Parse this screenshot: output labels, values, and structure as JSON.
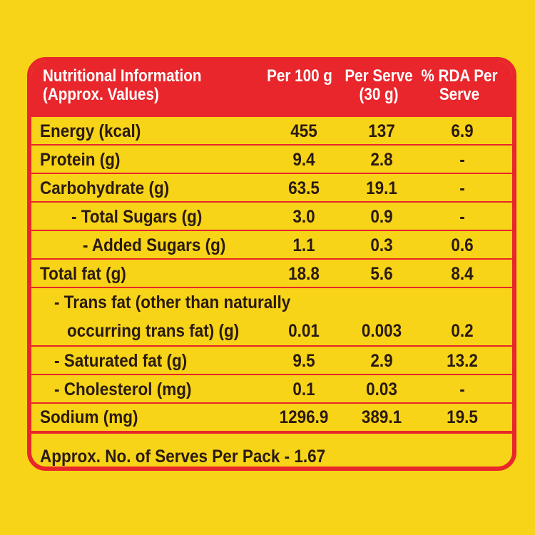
{
  "header": {
    "info_line1": "Nutritional Information",
    "info_line2": "(Approx. Values)",
    "col1": "Per 100 g",
    "col2_line1": "Per Serve",
    "col2_line2": "(30 g)",
    "col3_line1": "% RDA Per",
    "col3_line2": "Serve"
  },
  "rows": [
    {
      "label": "Energy (kcal)",
      "per100": "455",
      "perServe": "137",
      "rda": "6.9"
    },
    {
      "label": "Protein (g)",
      "per100": "9.4",
      "perServe": "2.8",
      "rda": "-"
    },
    {
      "label": "Carbohydrate (g)",
      "per100": "63.5",
      "perServe": "19.1",
      "rda": "-"
    },
    {
      "label": "- Total Sugars (g)",
      "per100": "3.0",
      "perServe": "0.9",
      "rda": "-"
    },
    {
      "label": "- Added Sugars (g)",
      "per100": "1.1",
      "perServe": "0.3",
      "rda": "0.6"
    },
    {
      "label": "Total fat (g)",
      "per100": "18.8",
      "perServe": "5.6",
      "rda": "8.4"
    },
    {
      "label_line1": "- Trans fat (other than naturally",
      "label_line2": "occurring trans fat) (g)",
      "per100": "0.01",
      "perServe": "0.003",
      "rda": "0.2"
    },
    {
      "label": "- Saturated fat (g)",
      "per100": "9.5",
      "perServe": "2.9",
      "rda": "13.2"
    },
    {
      "label": "- Cholesterol (mg)",
      "per100": "0.1",
      "perServe": "0.03",
      "rda": "-"
    },
    {
      "label": "Sodium (mg)",
      "per100": "1296.9",
      "perServe": "389.1",
      "rda": "19.5"
    }
  ],
  "footer": "Approx. No. of Serves Per Pack - 1.67",
  "colors": {
    "background": "#f7d417",
    "accent": "#e8262b",
    "text": "#2a1a12"
  }
}
